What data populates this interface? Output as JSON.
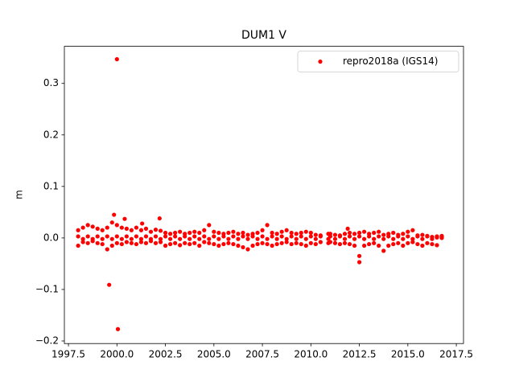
{
  "chart_data": {
    "type": "scatter",
    "title": "DUM1 V",
    "y_label": "m",
    "xlim": [
      1997.29,
      2017.87
    ],
    "ylim": [
      -0.205,
      0.372
    ],
    "xticks": [
      {
        "value": 1997.5,
        "label": "1997.5"
      },
      {
        "value": 2000,
        "label": "2000.0"
      },
      {
        "value": 2002.5,
        "label": "2002.5"
      },
      {
        "value": 2005,
        "label": "2005.0"
      },
      {
        "value": 2007.5,
        "label": "2007.5"
      },
      {
        "value": 2010,
        "label": "2010.0"
      },
      {
        "value": 2012.5,
        "label": "2012.5"
      },
      {
        "value": 2015,
        "label": "2015.0"
      },
      {
        "value": 2017.5,
        "label": "2017.5"
      }
    ],
    "yticks": [
      {
        "value": -0.2,
        "label": "−0.2"
      },
      {
        "value": -0.1,
        "label": "−0.1"
      },
      {
        "value": 0,
        "label": "0.0"
      },
      0.1,
      0.2,
      0.3
    ],
    "legend": "upper right",
    "series": [
      {
        "name": "repro2018a (IGS14)",
        "color": "#ff0000",
        "x": [
          1998,
          1998,
          1998,
          1998.25,
          1998.25,
          1998.25,
          1998.5,
          1998.5,
          1998.5,
          1998.75,
          1998.75,
          1998.75,
          1999,
          1999,
          1999,
          1999.25,
          1999.25,
          1999.25,
          1999.5,
          1999.5,
          1999.5,
          1999.75,
          1999.75,
          1999.75,
          2000,
          2000,
          2000,
          2000.25,
          2000.25,
          2000.25,
          2000.5,
          2000.5,
          2000.5,
          2000.75,
          2000.75,
          2000.75,
          2001,
          2001,
          2001,
          2001.25,
          2001.25,
          2001.25,
          2001.5,
          2001.5,
          2001.5,
          2001.75,
          2001.75,
          2001.75,
          2002,
          2002,
          2002,
          2002.25,
          2002.25,
          2002.25,
          2002.5,
          2002.5,
          2002.5,
          2002.75,
          2002.75,
          2002.75,
          2003,
          2003,
          2003,
          2003.25,
          2003.25,
          2003.25,
          2003.5,
          2003.5,
          2003.5,
          2003.75,
          2003.75,
          2003.75,
          2004,
          2004,
          2004,
          2004.25,
          2004.25,
          2004.25,
          2004.5,
          2004.5,
          2004.5,
          2004.75,
          2004.75,
          2004.75,
          2005,
          2005,
          2005,
          2005.25,
          2005.25,
          2005.25,
          2005.5,
          2005.5,
          2005.5,
          2005.75,
          2005.75,
          2005.75,
          2006,
          2006,
          2006,
          2006.25,
          2006.25,
          2006.25,
          2006.5,
          2006.5,
          2006.5,
          2006.75,
          2006.75,
          2006.75,
          2007,
          2007,
          2007,
          2007.25,
          2007.25,
          2007.25,
          2007.5,
          2007.5,
          2007.5,
          2007.75,
          2007.75,
          2007.75,
          2008,
          2008,
          2008,
          2008.25,
          2008.25,
          2008.25,
          2008.5,
          2008.5,
          2008.5,
          2008.75,
          2008.75,
          2008.75,
          2009,
          2009,
          2009,
          2009.25,
          2009.25,
          2009.25,
          2009.5,
          2009.5,
          2009.5,
          2009.75,
          2009.75,
          2009.75,
          2010,
          2010,
          2010,
          2010.25,
          2010.25,
          2010.25,
          2010.5,
          2010.5,
          2010.5,
          2010.9,
          2010.9,
          2010.9,
          2011,
          2011,
          2011,
          2011.25,
          2011.25,
          2011.25,
          2011.5,
          2011.5,
          2011.5,
          2011.75,
          2011.75,
          2011.75,
          2012,
          2012,
          2012,
          2012.25,
          2012.25,
          2012.25,
          2012.5,
          2012.5,
          2012.5,
          2012.75,
          2012.75,
          2012.75,
          2013,
          2013,
          2013,
          2013.25,
          2013.25,
          2013.25,
          2013.5,
          2013.5,
          2013.5,
          2013.75,
          2013.75,
          2013.75,
          2014,
          2014,
          2014,
          2014.25,
          2014.25,
          2014.25,
          2014.5,
          2014.5,
          2014.5,
          2014.75,
          2014.75,
          2014.75,
          2015,
          2015,
          2015,
          2015.25,
          2015.25,
          2015.25,
          2015.5,
          2015.5,
          2015.5,
          2015.75,
          2015.75,
          2015.75,
          2016,
          2016,
          2016,
          2016.25,
          2016.25,
          2016.25,
          2016.5,
          2016.5,
          2016.5,
          2016.75,
          2016.75,
          2016.75,
          2000.0,
          1999.6,
          2000.05,
          2000.4,
          2002.2,
          2001.3,
          1999.85,
          2011.9,
          2012.5
        ],
        "values": [
          0.015,
          0.003,
          -0.015,
          0.02,
          -0.002,
          -0.008,
          0.025,
          0.003,
          -0.01,
          0.022,
          -0.002,
          -0.006,
          0.018,
          0.003,
          -0.01,
          0.015,
          -0.002,
          -0.012,
          0.02,
          0.003,
          -0.022,
          0.03,
          -0.002,
          -0.015,
          0.025,
          0.003,
          -0.01,
          0.02,
          -0.002,
          -0.012,
          0.018,
          0.003,
          -0.008,
          0.015,
          -0.002,
          -0.01,
          0.02,
          0.003,
          -0.012,
          0.015,
          -0.002,
          -0.008,
          0.018,
          0.003,
          -0.01,
          0.012,
          -0.002,
          -0.006,
          0.016,
          0.003,
          -0.01,
          0.014,
          -0.002,
          -0.008,
          0.01,
          0.003,
          -0.015,
          0.008,
          -0.002,
          -0.012,
          0.01,
          0.003,
          -0.01,
          0.012,
          -0.002,
          -0.014,
          0.008,
          0.003,
          -0.01,
          0.01,
          -0.002,
          -0.012,
          0.012,
          0.003,
          -0.01,
          0.01,
          -0.002,
          -0.015,
          0.015,
          0.003,
          -0.008,
          0.025,
          -0.002,
          -0.01,
          0.012,
          0.003,
          -0.012,
          0.01,
          -0.002,
          -0.015,
          0.008,
          0.003,
          -0.012,
          0.01,
          -0.002,
          -0.01,
          0.012,
          0.003,
          -0.012,
          0.008,
          -0.002,
          -0.015,
          0.01,
          0.003,
          -0.018,
          0.006,
          -0.002,
          -0.022,
          0.008,
          0.003,
          -0.015,
          0.01,
          -0.002,
          -0.012,
          0.015,
          0.003,
          -0.01,
          0.025,
          -0.002,
          -0.012,
          0.01,
          0.003,
          -0.015,
          0.008,
          -0.002,
          -0.012,
          0.012,
          0.003,
          -0.01,
          0.015,
          -0.002,
          -0.008,
          0.01,
          0.003,
          -0.012,
          0.008,
          -0.002,
          -0.01,
          0.01,
          0.003,
          -0.012,
          0.012,
          -0.002,
          -0.015,
          0.01,
          0.003,
          -0.01,
          0.006,
          -0.002,
          -0.012,
          0.005,
          0.003,
          -0.008,
          0.008,
          -0.002,
          -0.01,
          0.008,
          0.003,
          -0.008,
          0.006,
          -0.002,
          -0.01,
          0.005,
          0.003,
          -0.012,
          0.008,
          -0.002,
          -0.01,
          0.01,
          0.003,
          -0.012,
          0.008,
          -0.002,
          -0.015,
          0.01,
          0.003,
          -0.035,
          0.012,
          -0.002,
          -0.015,
          0.008,
          0.003,
          -0.012,
          0.01,
          -0.002,
          -0.01,
          0.012,
          0.003,
          -0.015,
          0.006,
          -0.002,
          -0.025,
          0.008,
          0.003,
          -0.015,
          0.01,
          -0.002,
          -0.012,
          0.006,
          0.003,
          -0.01,
          0.008,
          -0.002,
          -0.015,
          0.012,
          0.003,
          -0.01,
          0.015,
          -0.002,
          -0.008,
          0.005,
          0.003,
          -0.012,
          0.006,
          -0.002,
          -0.015,
          0.004,
          0.003,
          -0.01,
          0.002,
          -0.002,
          -0.012,
          0.003,
          0.001,
          -0.014,
          0.004,
          0.002,
          0.0,
          0.347,
          -0.091,
          -0.177,
          0.037,
          0.038,
          0.028,
          0.045,
          0.018,
          -0.047
        ]
      }
    ]
  }
}
